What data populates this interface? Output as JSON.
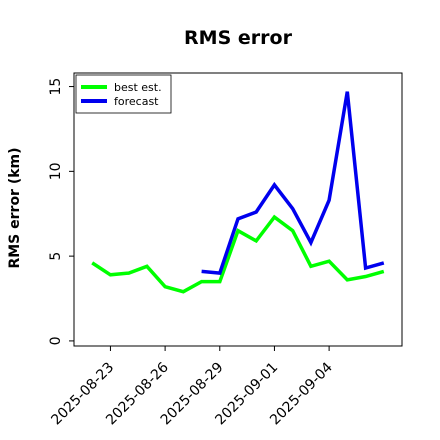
{
  "chart_data": {
    "type": "line",
    "title": "RMS error",
    "ylabel": "RMS error (km)",
    "xlabel": "",
    "x": [
      "2025-08-22",
      "2025-08-23",
      "2025-08-24",
      "2025-08-25",
      "2025-08-26",
      "2025-08-27",
      "2025-08-28",
      "2025-08-29",
      "2025-08-30",
      "2025-08-31",
      "2025-09-01",
      "2025-09-02",
      "2025-09-03",
      "2025-09-04",
      "2025-09-05",
      "2025-09-06",
      "2025-09-07"
    ],
    "xticks": [
      "2025-08-23",
      "2025-08-26",
      "2025-08-29",
      "2025-09-01",
      "2025-09-04"
    ],
    "yticks": [
      0,
      5,
      10,
      15
    ],
    "ylim": [
      -0.3,
      15.8
    ],
    "xlim": [
      "2025-08-21",
      "2025-09-08"
    ],
    "grid": false,
    "legend_position": "top-left",
    "series": [
      {
        "name": "best est.",
        "color": "#00ff00",
        "values": [
          4.6,
          3.9,
          4.0,
          4.4,
          3.2,
          2.9,
          3.5,
          3.5,
          6.5,
          5.9,
          7.3,
          6.5,
          4.4,
          4.7,
          3.6,
          3.8,
          4.1
        ]
      },
      {
        "name": "forecast",
        "color": "#0000ee",
        "values": [
          null,
          null,
          null,
          null,
          null,
          null,
          4.1,
          4.0,
          7.2,
          7.6,
          9.2,
          7.8,
          5.8,
          8.3,
          14.7,
          4.3,
          4.6
        ]
      }
    ]
  }
}
